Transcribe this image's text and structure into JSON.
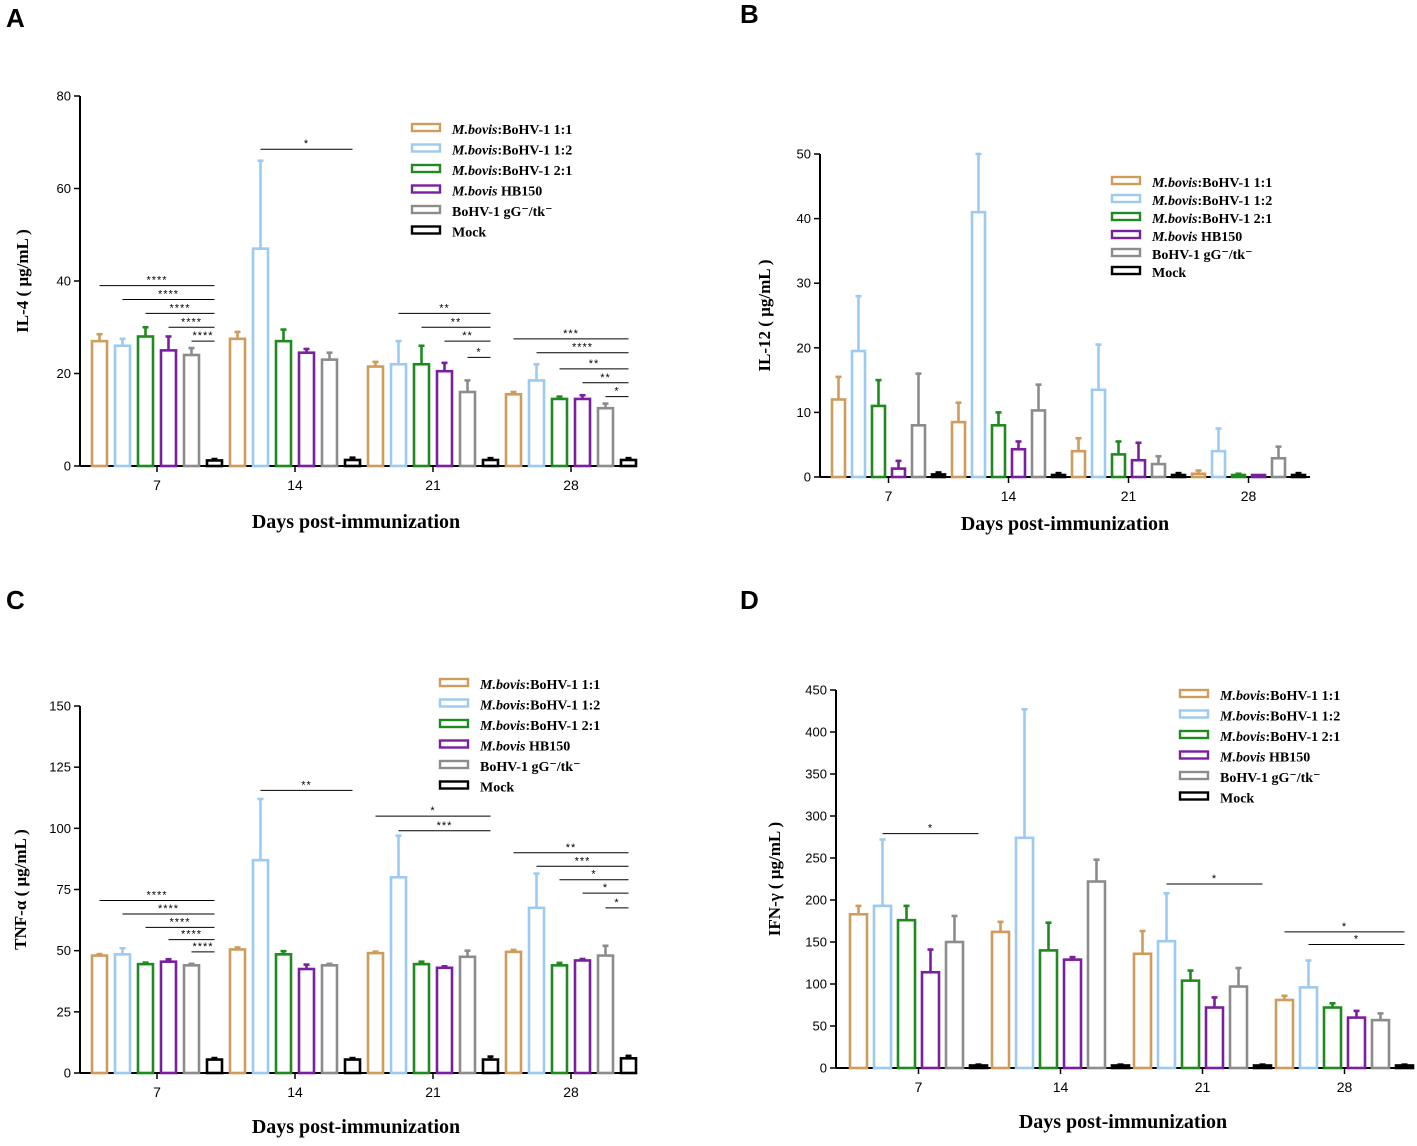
{
  "colors": {
    "M. bovis:BoHV-1 1:1": "#cf9c5c",
    "M. bovis:BoHV-1 1:2": "#9ccaf0",
    "M. bovis:BoHV-1 2:1": "#1f8a1f",
    "M. bovis HB150": "#7a1fa0",
    "BoHV-1 gG-/tk-": "#8c8c8c",
    "Mock": "#000000"
  },
  "chart_data": [
    {
      "panel": "A",
      "type": "bar",
      "ylabel": "IL-4 ( μg/mL )",
      "xlabel": "Days post-immunization",
      "ylim": [
        0,
        80
      ],
      "yticks": [
        0,
        20,
        40,
        60,
        80
      ],
      "categories": [
        "7",
        "14",
        "21",
        "28"
      ],
      "series": [
        {
          "name": "M.bovis:BoHV-1 1:1",
          "legend": [
            "M.bovis",
            ":BoHV-1 1:1"
          ],
          "values": [
            27,
            27.5,
            21.5,
            15.5
          ],
          "errors": [
            1.5,
            1.5,
            1,
            0.5
          ]
        },
        {
          "name": "M.bovis:BoHV-1 1:2",
          "legend": [
            "M.bovis",
            ":BoHV-1 1:2"
          ],
          "values": [
            26,
            47,
            22,
            18.5
          ],
          "errors": [
            1.5,
            19,
            5,
            3.5
          ]
        },
        {
          "name": "M.bovis:BoHV-1 2:1",
          "legend": [
            "M.bovis",
            ":BoHV-1 2:1"
          ],
          "values": [
            28,
            27,
            22,
            14.5
          ],
          "errors": [
            2,
            2.5,
            4,
            0.5
          ]
        },
        {
          "name": "M.bovis HB150",
          "legend": [
            "M.bovis",
            " HB150"
          ],
          "values": [
            25,
            24.5,
            20.5,
            14.5
          ],
          "errors": [
            3,
            0.8,
            1.8,
            0.8
          ]
        },
        {
          "name": "BoHV-1 gG-/tk-",
          "legend": [
            "",
            "BoHV-1 gG⁻/tk⁻"
          ],
          "values": [
            24,
            23,
            16,
            12.5
          ],
          "errors": [
            1.5,
            1.5,
            2.5,
            1
          ]
        },
        {
          "name": "Mock",
          "legend": [
            "",
            "Mock"
          ],
          "values": [
            1.2,
            1.3,
            1.3,
            1.3
          ],
          "errors": [
            0.3,
            0.5,
            0.4,
            0.4
          ]
        }
      ],
      "annotations": [
        {
          "text": "****",
          "group": 0,
          "from": 0,
          "to": 5,
          "y": 39
        },
        {
          "text": "****",
          "group": 0,
          "from": 1,
          "to": 5,
          "y": 36
        },
        {
          "text": "****",
          "group": 0,
          "from": 2,
          "to": 5,
          "y": 33
        },
        {
          "text": "****",
          "group": 0,
          "from": 3,
          "to": 5,
          "y": 30
        },
        {
          "text": "****",
          "group": 0,
          "from": 4,
          "to": 5,
          "y": 27
        },
        {
          "text": "*",
          "group": 1,
          "from": 1,
          "to": 5,
          "y": 68.5
        },
        {
          "text": "**",
          "group": 2,
          "from": 1,
          "to": 5,
          "y": 33
        },
        {
          "text": "**",
          "group": 2,
          "from": 2,
          "to": 5,
          "y": 30
        },
        {
          "text": "**",
          "group": 2,
          "from": 3,
          "to": 5,
          "y": 27
        },
        {
          "text": "*",
          "group": 2,
          "from": 4,
          "to": 5,
          "y": 23.5
        },
        {
          "text": "***",
          "group": 3,
          "from": 0,
          "to": 5,
          "y": 27.5
        },
        {
          "text": "****",
          "group": 3,
          "from": 1,
          "to": 5,
          "y": 24.5
        },
        {
          "text": "**",
          "group": 3,
          "from": 2,
          "to": 5,
          "y": 21
        },
        {
          "text": "**",
          "group": 3,
          "from": 3,
          "to": 5,
          "y": 18
        },
        {
          "text": "*",
          "group": 3,
          "from": 4,
          "to": 5,
          "y": 15
        }
      ]
    },
    {
      "panel": "B",
      "type": "bar",
      "ylabel": "IL-12 ( μg/mL )",
      "xlabel": "Days post-immunization",
      "ylim": [
        0,
        50
      ],
      "yticks": [
        0,
        10,
        20,
        30,
        40,
        50
      ],
      "categories": [
        "7",
        "14",
        "21",
        "28"
      ],
      "series": [
        {
          "name": "M.bovis:BoHV-1 1:1",
          "legend": [
            "M.bovis",
            ":BoHV-1 1:1"
          ],
          "values": [
            12,
            8.5,
            4,
            0.5
          ],
          "errors": [
            3.5,
            3,
            2,
            0.5
          ]
        },
        {
          "name": "M.bovis:BoHV-1 1:2",
          "legend": [
            "M.bovis",
            ":BoHV-1 1:2"
          ],
          "values": [
            19.5,
            41,
            13.5,
            4
          ],
          "errors": [
            8.5,
            9,
            7,
            3.5
          ]
        },
        {
          "name": "M.bovis:BoHV-1 2:1",
          "legend": [
            "M.bovis",
            ":BoHV-1 2:1"
          ],
          "values": [
            11,
            8,
            3.5,
            0.3
          ],
          "errors": [
            4,
            2,
            2,
            0.2
          ]
        },
        {
          "name": "M.bovis HB150",
          "legend": [
            "M.bovis",
            " HB150"
          ],
          "values": [
            1.3,
            4.3,
            2.6,
            0
          ],
          "errors": [
            1.2,
            1.2,
            2.7,
            0
          ]
        },
        {
          "name": "BoHV-1 gG-/tk-",
          "legend": [
            "",
            "BoHV-1 gG⁻/tk⁻"
          ],
          "values": [
            8,
            10.3,
            2,
            2.9
          ],
          "errors": [
            8,
            4,
            1.2,
            1.8
          ]
        },
        {
          "name": "Mock",
          "legend": [
            "",
            "Mock"
          ],
          "values": [
            0.4,
            0.3,
            0.3,
            0.3
          ],
          "errors": [
            0.3,
            0.3,
            0.3,
            0.3
          ]
        }
      ],
      "annotations": []
    },
    {
      "panel": "C",
      "type": "bar",
      "ylabel": "TNF-α ( μg/mL )",
      "xlabel": "Days post-immunization",
      "ylim": [
        0,
        150
      ],
      "yticks": [
        0,
        25,
        50,
        75,
        100,
        125,
        150
      ],
      "categories": [
        "7",
        "14",
        "21",
        "28"
      ],
      "series": [
        {
          "name": "M.bovis:BoHV-1 1:1",
          "legend": [
            "M.bovis",
            ":BoHV-1 1:1"
          ],
          "values": [
            48,
            50.5,
            49,
            49.5
          ],
          "errors": [
            0.6,
            0.8,
            0.6,
            0.8
          ]
        },
        {
          "name": "M.bovis:BoHV-1 1:2",
          "legend": [
            "M.bovis",
            ":BoHV-1 1:2"
          ],
          "values": [
            48.5,
            87,
            80,
            67.5
          ],
          "errors": [
            2.5,
            25,
            17,
            14
          ]
        },
        {
          "name": "M.bovis:BoHV-1 2:1",
          "legend": [
            "M.bovis",
            ":BoHV-1 2:1"
          ],
          "values": [
            44.5,
            48.5,
            44.5,
            44
          ],
          "errors": [
            0.6,
            1.3,
            1,
            1
          ]
        },
        {
          "name": "M.bovis HB150",
          "legend": [
            "M.bovis",
            " HB150"
          ],
          "values": [
            45.5,
            42.5,
            43,
            46
          ],
          "errors": [
            1,
            1.8,
            0.6,
            0.6
          ]
        },
        {
          "name": "BoHV-1 gG-/tk-",
          "legend": [
            "",
            "BoHV-1 gG⁻/tk⁻"
          ],
          "values": [
            44,
            44,
            47.5,
            48
          ],
          "errors": [
            0.6,
            0.6,
            2.5,
            4
          ]
        },
        {
          "name": "Mock",
          "legend": [
            "",
            "Mock"
          ],
          "values": [
            5.5,
            5.5,
            5.5,
            6
          ],
          "errors": [
            0.6,
            0.6,
            1.2,
            1
          ]
        }
      ],
      "annotations": [
        {
          "text": "****",
          "group": 0,
          "from": 0,
          "to": 5,
          "y": 70.5
        },
        {
          "text": "****",
          "group": 0,
          "from": 1,
          "to": 5,
          "y": 65
        },
        {
          "text": "****",
          "group": 0,
          "from": 2,
          "to": 5,
          "y": 59.5
        },
        {
          "text": "****",
          "group": 0,
          "from": 3,
          "to": 5,
          "y": 54.5
        },
        {
          "text": "****",
          "group": 0,
          "from": 4,
          "to": 5,
          "y": 49.5
        },
        {
          "text": "**",
          "group": 1,
          "from": 1,
          "to": 5,
          "y": 115.5
        },
        {
          "text": "*",
          "group": 2,
          "from": 0,
          "to": 5,
          "y": 105
        },
        {
          "text": "***",
          "group": 2,
          "from": 1,
          "to": 5,
          "y": 99
        },
        {
          "text": "**",
          "group": 3,
          "from": 0,
          "to": 5,
          "y": 90
        },
        {
          "text": "***",
          "group": 3,
          "from": 1,
          "to": 5,
          "y": 84.5
        },
        {
          "text": "*",
          "group": 3,
          "from": 2,
          "to": 5,
          "y": 79
        },
        {
          "text": "*",
          "group": 3,
          "from": 3,
          "to": 5,
          "y": 73.5
        },
        {
          "text": "*",
          "group": 3,
          "from": 4,
          "to": 5,
          "y": 67.5
        }
      ]
    },
    {
      "panel": "D",
      "type": "bar",
      "ylabel": "IFN-γ ( μg/mL )",
      "xlabel": "Days post-immunization",
      "ylim": [
        0,
        450
      ],
      "yticks": [
        0,
        50,
        100,
        150,
        200,
        250,
        300,
        350,
        400,
        450
      ],
      "categories": [
        "7",
        "14",
        "21",
        "28"
      ],
      "series": [
        {
          "name": "M.bovis:BoHV-1 1:1",
          "legend": [
            "M.bovis",
            ":BoHV-1 1:1"
          ],
          "values": [
            183,
            162,
            136,
            81
          ],
          "errors": [
            10,
            12,
            27,
            5
          ]
        },
        {
          "name": "M.bovis:BoHV-1 1:2",
          "legend": [
            "M.bovis",
            ":BoHV-1 1:2"
          ],
          "values": [
            193,
            274,
            151,
            96
          ],
          "errors": [
            79,
            153,
            57,
            32
          ]
        },
        {
          "name": "M.bovis:BoHV-1 2:1",
          "legend": [
            "M.bovis",
            ":BoHV-1 2:1"
          ],
          "values": [
            176,
            140,
            104,
            72
          ],
          "errors": [
            17,
            33,
            12,
            5
          ]
        },
        {
          "name": "M.bovis HB150",
          "legend": [
            "M.bovis",
            " HB150"
          ],
          "values": [
            114,
            129,
            72,
            60
          ],
          "errors": [
            27,
            3,
            12,
            8
          ]
        },
        {
          "name": "BoHV-1 gG-/tk-",
          "legend": [
            "",
            "BoHV-1 gG⁻/tk⁻"
          ],
          "values": [
            150,
            222,
            97,
            57
          ],
          "errors": [
            31,
            26,
            22,
            8
          ]
        },
        {
          "name": "Mock",
          "legend": [
            "",
            "Mock"
          ],
          "values": [
            3,
            3,
            3,
            3
          ],
          "errors": [
            1,
            1,
            1,
            1
          ]
        }
      ],
      "annotations": [
        {
          "text": "*",
          "group": 0,
          "from": 1,
          "to": 5,
          "y": 279
        },
        {
          "text": "*",
          "group": 2,
          "from": 1,
          "to": 5,
          "y": 219
        },
        {
          "text": "*",
          "group": 3,
          "from": 0,
          "to": 5,
          "y": 162
        },
        {
          "text": "*",
          "group": 3,
          "from": 1,
          "to": 5,
          "y": 147
        }
      ]
    }
  ]
}
